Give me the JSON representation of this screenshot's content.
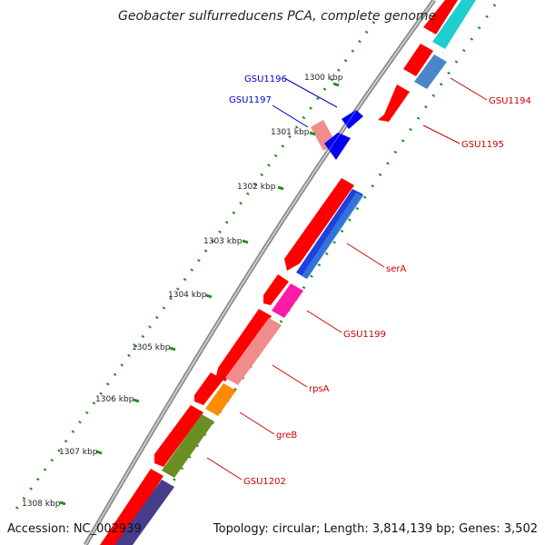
{
  "title": "Geobacter sulfurreducens PCA, complete genome",
  "footer": {
    "accession": "Accession: NC_002939",
    "summary": "Topology: circular; Length: 3,814,139 bp; Genes: 3,502"
  },
  "ticks": [
    "1300 kbp",
    "1301 kbp",
    "1302 kbp",
    "1303 kbp",
    "1304 kbp",
    "1305 kbp",
    "1306 kbp",
    "1307 kbp",
    "1308 kbp"
  ],
  "genes": {
    "gsu1194": "GSU1194",
    "gsu1195": "GSU1195",
    "gsu1196": "GSU1196",
    "gsu1197": "GSU1197",
    "serA": "serA",
    "gsu1199": "GSU1199",
    "rpsA": "rpsA",
    "greB": "greB",
    "gsu1202": "GSU1202"
  },
  "colors": {
    "backbone": "#8c8c8c",
    "cds": "#ff0000",
    "forward_label": "#0000cc",
    "reverse_label": "#cc0000",
    "tick": "#228b22",
    "gsu1194": "#1ecfd0",
    "gsu1195": "#4a86c8",
    "gsu1196": "#0000ee",
    "gsu1197": "#f08c8c",
    "serA": "#2a7cd6",
    "gsu1199": "#ff1aa8",
    "rpsA": "#f08c8c",
    "greB": "#ff8c00",
    "gsu1202": "#6b8e23",
    "last": "#483d8b"
  }
}
